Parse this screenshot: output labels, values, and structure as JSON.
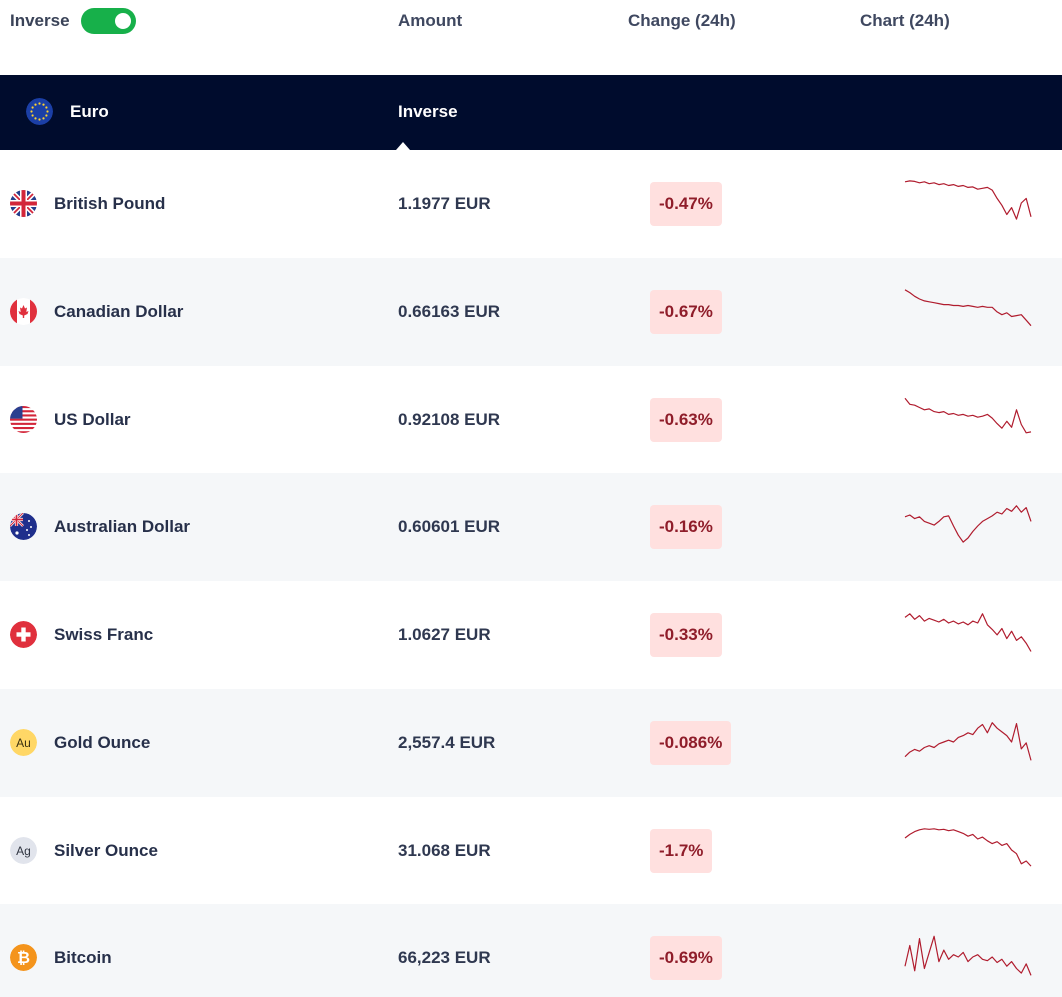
{
  "header": {
    "inverse_label": "Inverse",
    "inverse_on": true,
    "columns": {
      "amount": "Amount",
      "change": "Change (24h)",
      "chart": "Chart (24h)"
    }
  },
  "base": {
    "name": "Euro",
    "inverse_label": "Inverse",
    "flag_icon": "eu-flag-icon"
  },
  "colors": {
    "toggle_on": "#17b04a",
    "base_row_bg": "#000c2d",
    "change_bg": "#ffe0df",
    "change_text": "#8f1d2a",
    "sparkline": "#b01c2e"
  },
  "rows": [
    {
      "name": "British Pound",
      "amount": "1.1977 EUR",
      "change": "-0.47%",
      "icon": "uk-flag-icon",
      "spark": [
        0.04,
        0.02,
        0.03,
        0.06,
        0.04,
        0.08,
        0.06,
        0.1,
        0.08,
        0.12,
        0.1,
        0.14,
        0.12,
        0.16,
        0.15,
        0.2,
        0.18,
        0.16,
        0.22,
        0.4,
        0.55,
        0.75,
        0.6,
        0.85,
        0.5,
        0.4,
        0.8
      ]
    },
    {
      "name": "Canadian Dollar",
      "amount": "0.66163 EUR",
      "change": "-0.67%",
      "icon": "canada-flag-icon",
      "spark": [
        0.04,
        0.1,
        0.18,
        0.24,
        0.28,
        0.3,
        0.32,
        0.34,
        0.36,
        0.36,
        0.38,
        0.38,
        0.4,
        0.38,
        0.4,
        0.42,
        0.4,
        0.42,
        0.42,
        0.52,
        0.58,
        0.54,
        0.62,
        0.6,
        0.58,
        0.7,
        0.82
      ]
    },
    {
      "name": "US Dollar",
      "amount": "0.92108 EUR",
      "change": "-0.63%",
      "icon": "us-flag-icon",
      "spark": [
        0.05,
        0.18,
        0.2,
        0.25,
        0.3,
        0.28,
        0.34,
        0.36,
        0.34,
        0.4,
        0.38,
        0.42,
        0.4,
        0.44,
        0.42,
        0.46,
        0.44,
        0.4,
        0.48,
        0.6,
        0.7,
        0.55,
        0.68,
        0.3,
        0.62,
        0.8,
        0.78
      ]
    },
    {
      "name": "Australian Dollar",
      "amount": "0.60601 EUR",
      "change": "-0.16%",
      "icon": "australia-flag-icon",
      "spark": [
        0.3,
        0.26,
        0.34,
        0.3,
        0.4,
        0.44,
        0.48,
        0.4,
        0.3,
        0.28,
        0.5,
        0.7,
        0.85,
        0.76,
        0.62,
        0.5,
        0.4,
        0.34,
        0.28,
        0.2,
        0.24,
        0.12,
        0.18,
        0.06,
        0.2,
        0.1,
        0.4
      ]
    },
    {
      "name": "Swiss Franc",
      "amount": "1.0627 EUR",
      "change": "-0.33%",
      "icon": "swiss-flag-icon",
      "spark": [
        0.14,
        0.06,
        0.18,
        0.1,
        0.22,
        0.16,
        0.2,
        0.24,
        0.18,
        0.26,
        0.22,
        0.28,
        0.24,
        0.3,
        0.22,
        0.26,
        0.06,
        0.3,
        0.4,
        0.52,
        0.38,
        0.6,
        0.44,
        0.64,
        0.56,
        0.7,
        0.88
      ]
    },
    {
      "name": "Gold Ounce",
      "amount": "2,557.4 EUR",
      "change": "-0.086%",
      "icon": "gold-au-icon",
      "spark": [
        0.82,
        0.72,
        0.66,
        0.7,
        0.62,
        0.58,
        0.62,
        0.54,
        0.5,
        0.46,
        0.5,
        0.4,
        0.36,
        0.3,
        0.34,
        0.2,
        0.12,
        0.3,
        0.08,
        0.2,
        0.28,
        0.36,
        0.5,
        0.1,
        0.65,
        0.52,
        0.9
      ]
    },
    {
      "name": "Silver Ounce",
      "amount": "31.068 EUR",
      "change": "-1.7%",
      "icon": "silver-ag-icon",
      "spark": [
        0.24,
        0.16,
        0.1,
        0.06,
        0.04,
        0.05,
        0.04,
        0.06,
        0.05,
        0.08,
        0.06,
        0.1,
        0.14,
        0.2,
        0.16,
        0.26,
        0.22,
        0.3,
        0.36,
        0.32,
        0.4,
        0.36,
        0.5,
        0.58,
        0.8,
        0.74,
        0.85
      ]
    },
    {
      "name": "Bitcoin",
      "amount": "66,223 EUR",
      "change": "-0.69%",
      "icon": "bitcoin-icon",
      "spark": [
        0.7,
        0.25,
        0.8,
        0.1,
        0.75,
        0.4,
        0.05,
        0.6,
        0.35,
        0.55,
        0.45,
        0.5,
        0.4,
        0.6,
        0.5,
        0.45,
        0.55,
        0.58,
        0.5,
        0.62,
        0.55,
        0.7,
        0.6,
        0.75,
        0.85,
        0.65,
        0.9
      ]
    }
  ]
}
